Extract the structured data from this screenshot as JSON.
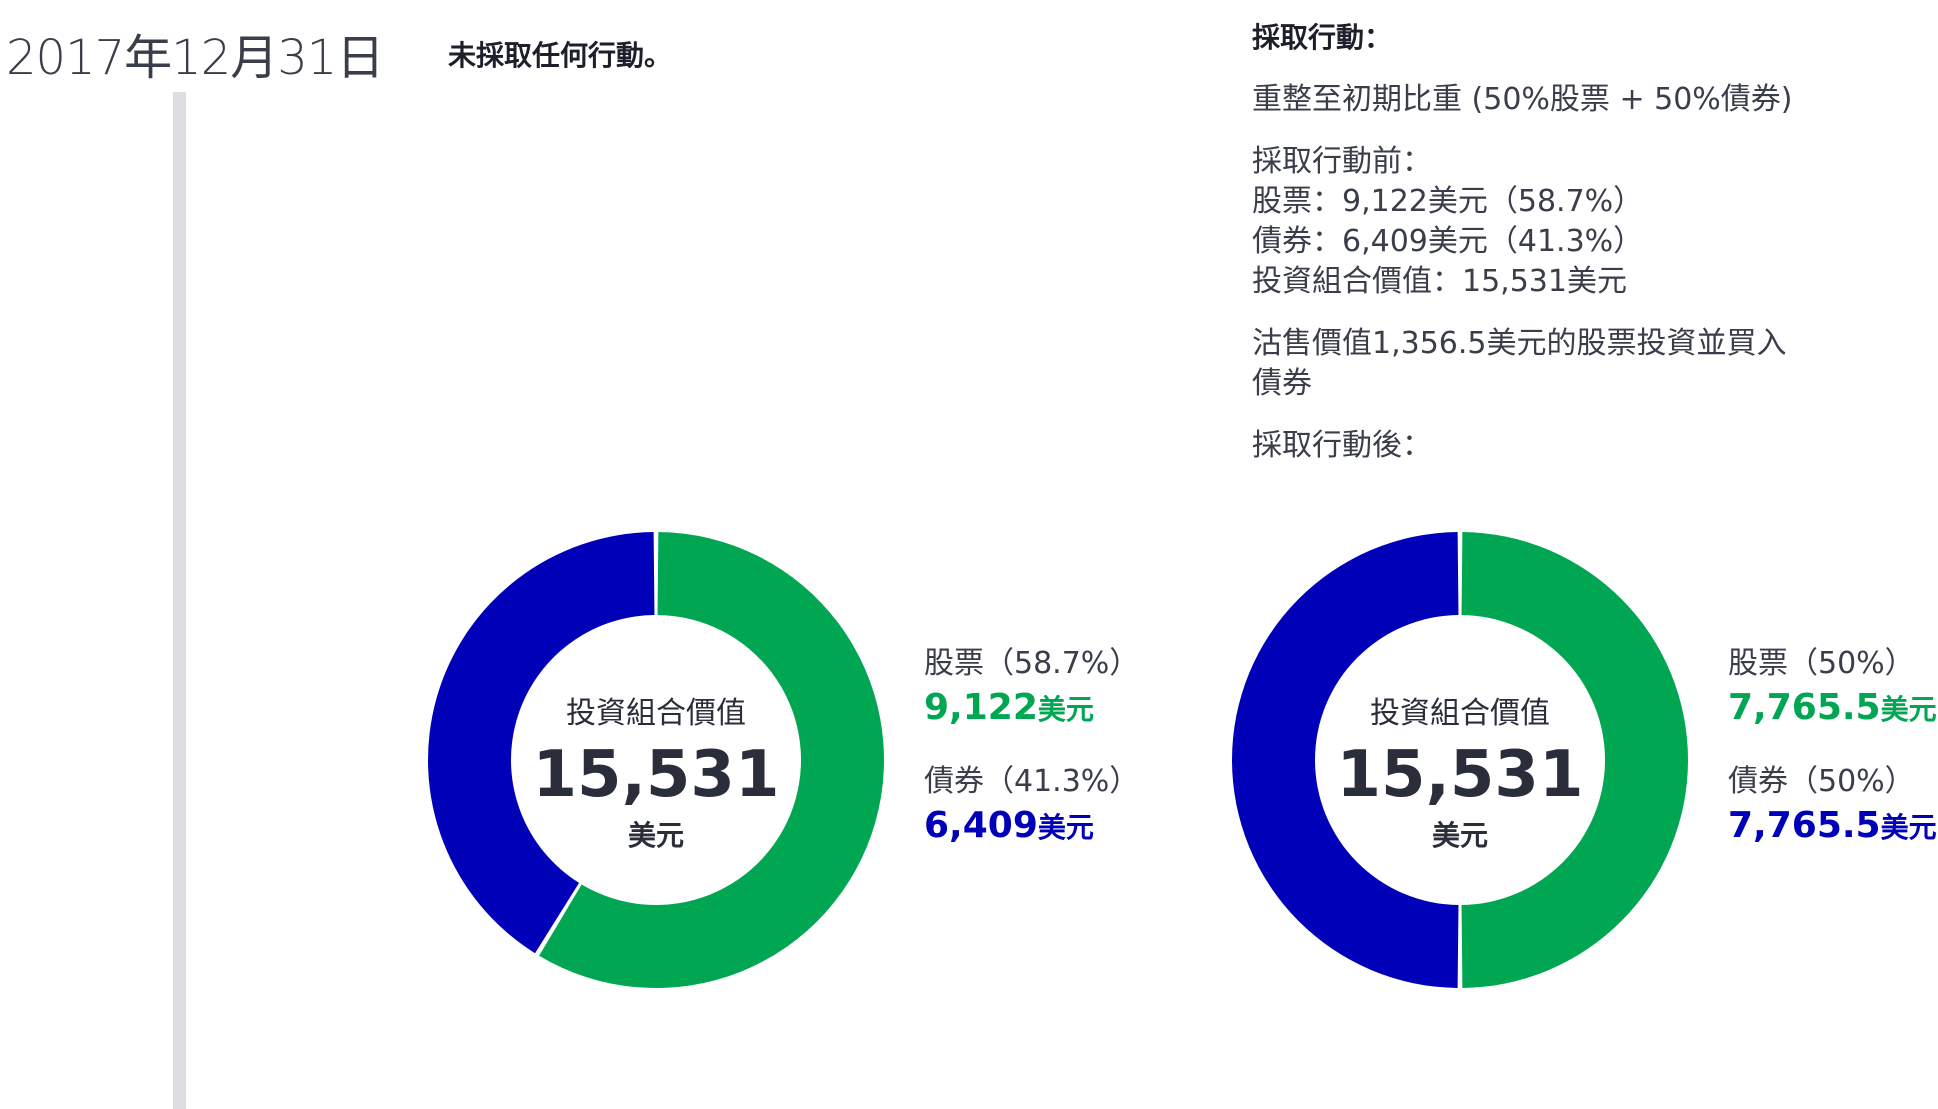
{
  "date": "2017年12月31日",
  "left_note": "未採取任何行動。",
  "right_panel": {
    "heading": "採取行動：",
    "rebalance": "重整至初期比重 (50%股票 + 50%債券)",
    "before_title": "採取行動前：",
    "before_lines": [
      "股票：9,122美元（58.7%）",
      "債券：6,409美元（41.3%）",
      "投資組合價值：15,531美元"
    ],
    "sell_line1": "沽售價值1,356.5美元的股票投資並買入",
    "sell_line2": "債券",
    "after_title": "採取行動後："
  },
  "colors": {
    "stocks": "#00a651",
    "bonds": "#0000b8"
  },
  "chart_data": [
    {
      "type": "pie",
      "variant": "donut",
      "center_title": "投資組合價值",
      "center_value": "15,531",
      "center_unit": "美元",
      "slices": [
        {
          "name": "股票",
          "label": "股票（58.7%）",
          "value": 9122,
          "percent": 58.7,
          "value_text": "9,122",
          "unit": "美元",
          "color": "#00a651"
        },
        {
          "name": "債券",
          "label": "債券（41.3%）",
          "value": 6409,
          "percent": 41.3,
          "value_text": "6,409",
          "unit": "美元",
          "color": "#0000b8"
        }
      ]
    },
    {
      "type": "pie",
      "variant": "donut",
      "center_title": "投資組合價值",
      "center_value": "15,531",
      "center_unit": "美元",
      "slices": [
        {
          "name": "股票",
          "label": "股票（50%）",
          "value": 7765.5,
          "percent": 50,
          "value_text": "7,765.5",
          "unit": "美元",
          "color": "#00a651"
        },
        {
          "name": "債券",
          "label": "債券（50%）",
          "value": 7765.5,
          "percent": 50,
          "value_text": "7,765.5",
          "unit": "美元",
          "color": "#0000b8"
        }
      ]
    }
  ]
}
